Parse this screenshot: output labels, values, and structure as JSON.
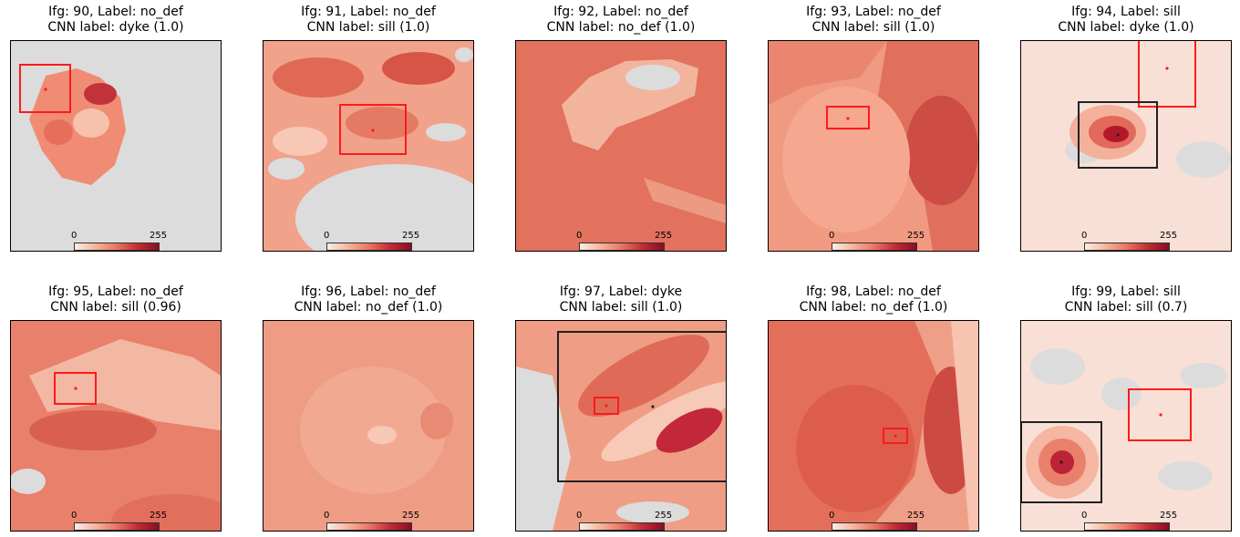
{
  "colorbar": {
    "min": "0",
    "max": "255",
    "colormap": "Reds (light cream to dark red)"
  },
  "colors": {
    "box_red": "#ff1a1a",
    "box_black": "#222222",
    "no_data": "#dcdcdc"
  },
  "panels": [
    {
      "title1": "Ifg: 90, Label: no_def",
      "title2": "CNN label: dyke (1.0)"
    },
    {
      "title1": "Ifg: 91, Label: no_def",
      "title2": "CNN label: sill (1.0)"
    },
    {
      "title1": "Ifg: 92, Label: no_def",
      "title2": "CNN label: no_def (1.0)"
    },
    {
      "title1": "Ifg: 93, Label: no_def",
      "title2": "CNN label: sill (1.0)"
    },
    {
      "title1": "Ifg: 94, Label: sill",
      "title2": "CNN label: dyke (1.0)"
    },
    {
      "title1": "Ifg: 95, Label: no_def",
      "title2": "CNN label: sill (0.96)"
    },
    {
      "title1": "Ifg: 96, Label: no_def",
      "title2": "CNN label: no_def (1.0)"
    },
    {
      "title1": "Ifg: 97, Label: dyke",
      "title2": "CNN label: sill (1.0)"
    },
    {
      "title1": "Ifg: 98, Label: no_def",
      "title2": "CNN label: no_def (1.0)"
    },
    {
      "title1": "Ifg: 99, Label: sill",
      "title2": "CNN label: sill (0.7)"
    }
  ],
  "chart_data": {
    "type": "image-grid",
    "rows": 2,
    "cols": 5,
    "panels": [
      {
        "ifg": 90,
        "label": "no_def",
        "cnn_label": "dyke",
        "cnn_confidence": 1.0,
        "boxes": [
          "red"
        ]
      },
      {
        "ifg": 91,
        "label": "no_def",
        "cnn_label": "sill",
        "cnn_confidence": 1.0,
        "boxes": [
          "red"
        ]
      },
      {
        "ifg": 92,
        "label": "no_def",
        "cnn_label": "no_def",
        "cnn_confidence": 1.0,
        "boxes": []
      },
      {
        "ifg": 93,
        "label": "no_def",
        "cnn_label": "sill",
        "cnn_confidence": 1.0,
        "boxes": [
          "red"
        ]
      },
      {
        "ifg": 94,
        "label": "sill",
        "cnn_label": "dyke",
        "cnn_confidence": 1.0,
        "boxes": [
          "red",
          "black"
        ]
      },
      {
        "ifg": 95,
        "label": "no_def",
        "cnn_label": "sill",
        "cnn_confidence": 0.96,
        "boxes": [
          "red"
        ]
      },
      {
        "ifg": 96,
        "label": "no_def",
        "cnn_label": "no_def",
        "cnn_confidence": 1.0,
        "boxes": []
      },
      {
        "ifg": 97,
        "label": "dyke",
        "cnn_label": "sill",
        "cnn_confidence": 1.0,
        "boxes": [
          "red",
          "black"
        ]
      },
      {
        "ifg": 98,
        "label": "no_def",
        "cnn_label": "no_def",
        "cnn_confidence": 1.0,
        "boxes": [
          "red"
        ]
      },
      {
        "ifg": 99,
        "label": "sill",
        "cnn_label": "sill",
        "cnn_confidence": 0.7,
        "boxes": [
          "red",
          "black"
        ]
      }
    ]
  }
}
